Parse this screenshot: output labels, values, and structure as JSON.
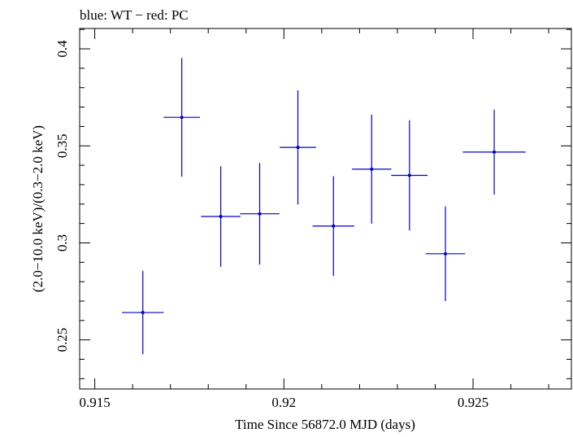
{
  "chart_data": {
    "type": "scatter",
    "title": "blue: WT − red: PC",
    "xlabel": "Time Since 56872.0 MJD (days)",
    "ylabel": "(2.0−10.0 keV)/(0.3−2.0 keV)",
    "xlim": [
      0.9146,
      0.9276
    ],
    "ylim": [
      0.2247,
      0.4105
    ],
    "x_ticks": [
      {
        "value": 0.915,
        "label": "0.915"
      },
      {
        "value": 0.92,
        "label": "0.92"
      },
      {
        "value": 0.925,
        "label": "0.925"
      }
    ],
    "y_ticks": [
      {
        "value": 0.25,
        "label": "0.25"
      },
      {
        "value": 0.3,
        "label": "0.3"
      },
      {
        "value": 0.35,
        "label": "0.35"
      },
      {
        "value": 0.4,
        "label": "0.4"
      }
    ],
    "x_minor_step": 0.001,
    "y_minor_step": 0.01,
    "grid": false,
    "series": [
      {
        "color": "#0000cc",
        "points": [
          {
            "x": 0.91627,
            "xerr": 0.00055,
            "y": 0.2641,
            "yerr": 0.0215
          },
          {
            "x": 0.9173,
            "xerr": 0.00048,
            "y": 0.3647,
            "yerr": 0.0306
          },
          {
            "x": 0.91833,
            "xerr": 0.00052,
            "y": 0.3136,
            "yerr": 0.0259
          },
          {
            "x": 0.91936,
            "xerr": 0.00052,
            "y": 0.315,
            "yerr": 0.0262
          },
          {
            "x": 0.92037,
            "xerr": 0.00048,
            "y": 0.3492,
            "yerr": 0.0294
          },
          {
            "x": 0.92131,
            "xerr": 0.00055,
            "y": 0.3087,
            "yerr": 0.0257
          },
          {
            "x": 0.92232,
            "xerr": 0.00052,
            "y": 0.338,
            "yerr": 0.0281
          },
          {
            "x": 0.92332,
            "xerr": 0.00048,
            "y": 0.3348,
            "yerr": 0.0284
          },
          {
            "x": 0.92427,
            "xerr": 0.00052,
            "y": 0.2944,
            "yerr": 0.0244
          },
          {
            "x": 0.92556,
            "xerr": 0.00083,
            "y": 0.3468,
            "yerr": 0.0219
          }
        ]
      }
    ]
  }
}
